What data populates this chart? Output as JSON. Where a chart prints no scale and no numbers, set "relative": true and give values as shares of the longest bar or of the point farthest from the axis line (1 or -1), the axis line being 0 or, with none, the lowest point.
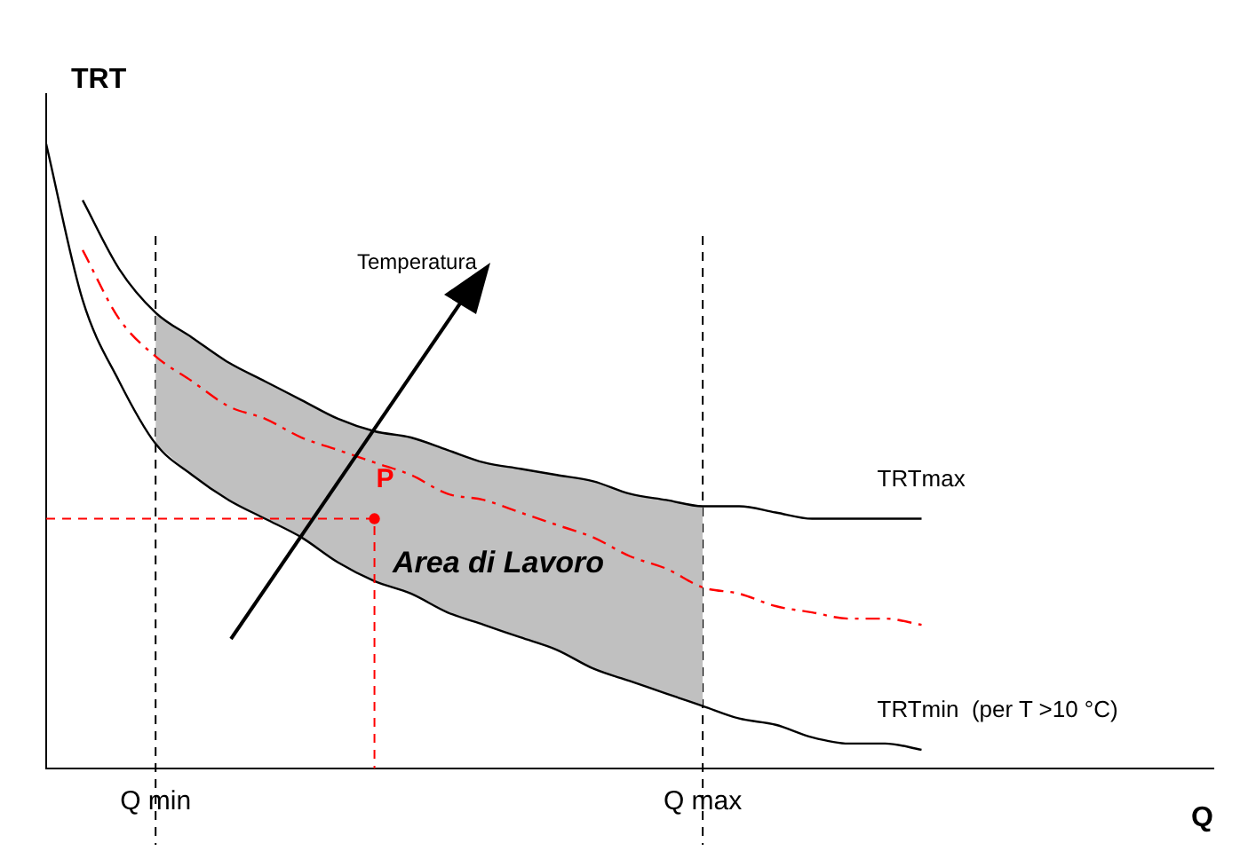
{
  "chart_data": {
    "type": "line",
    "relative": true,
    "xlabel": "Q",
    "ylabel": "TRT",
    "categories": [
      null,
      null,
      null,
      "Q min",
      null,
      null,
      null,
      null,
      null,
      null,
      null,
      null,
      null,
      null,
      null,
      null,
      null,
      null,
      "Q max",
      null,
      null,
      null,
      null,
      null,
      null,
      null,
      null,
      null,
      null,
      null,
      null,
      null,
      null
    ],
    "series": [
      {
        "type": "area",
        "color": "#c0c0c0",
        "values": [
          null,
          null,
          null,
          0.73,
          0.69,
          0.65,
          0.62,
          0.59,
          0.56,
          0.54,
          0.53,
          0.51,
          0.49,
          0.48,
          0.47,
          0.46,
          0.44,
          0.43,
          0.42,
          null,
          null,
          null,
          null,
          null,
          null,
          null,
          null,
          null,
          null,
          null,
          null,
          null,
          null
        ]
      },
      {
        "name": "TRTmax",
        "color": "#000000",
        "line_style": "solid",
        "values": [
          null,
          0.91,
          0.8,
          0.73,
          0.69,
          0.65,
          0.62,
          0.59,
          0.56,
          0.54,
          0.53,
          0.51,
          0.49,
          0.48,
          0.47,
          0.46,
          0.44,
          0.43,
          0.42,
          0.42,
          0.41,
          0.4,
          0.4,
          0.4,
          0.4,
          null,
          null,
          null,
          null,
          null,
          null,
          null,
          null
        ]
      },
      {
        "name": "TRTmin  (per T >10 °C)",
        "color": "#000000",
        "line_style": "solid",
        "values": [
          1.0,
          0.75,
          0.62,
          0.52,
          0.47,
          0.43,
          0.4,
          0.37,
          0.33,
          0.3,
          0.28,
          0.25,
          0.23,
          0.21,
          0.19,
          0.16,
          0.14,
          0.12,
          0.1,
          0.08,
          0.07,
          0.05,
          0.04,
          0.04,
          0.03,
          null,
          null,
          null,
          null,
          null,
          null,
          null,
          null
        ]
      },
      {
        "color": "#ff0000",
        "line_style": "dashed",
        "values": [
          null,
          0.83,
          0.72,
          0.66,
          0.62,
          0.58,
          0.56,
          0.53,
          0.51,
          0.49,
          0.47,
          0.44,
          0.43,
          0.41,
          0.39,
          0.37,
          0.34,
          0.32,
          0.29,
          0.28,
          0.26,
          0.25,
          0.24,
          0.24,
          0.23,
          null,
          null,
          null,
          null,
          null,
          null,
          null,
          null
        ]
      },
      {
        "type": "scatter",
        "name": "P",
        "color": "#ff0000",
        "marker": "circle",
        "values": [
          null,
          null,
          null,
          null,
          null,
          null,
          null,
          null,
          null,
          0.4,
          null,
          null,
          null,
          null,
          null,
          null,
          null,
          null,
          null,
          null,
          null,
          null,
          null,
          null,
          null,
          null,
          null,
          null,
          null,
          null,
          null,
          null,
          null
        ]
      }
    ],
    "ref_lines": [
      {
        "axis": "x",
        "value": "Q min",
        "color": "#000000",
        "line_style": "dashed"
      },
      {
        "axis": "x",
        "value": "Q max",
        "color": "#000000",
        "line_style": "dashed"
      }
    ],
    "annotations": [
      "Temperatura",
      "Area di Lavoro"
    ],
    "legend": false,
    "grid": false
  }
}
